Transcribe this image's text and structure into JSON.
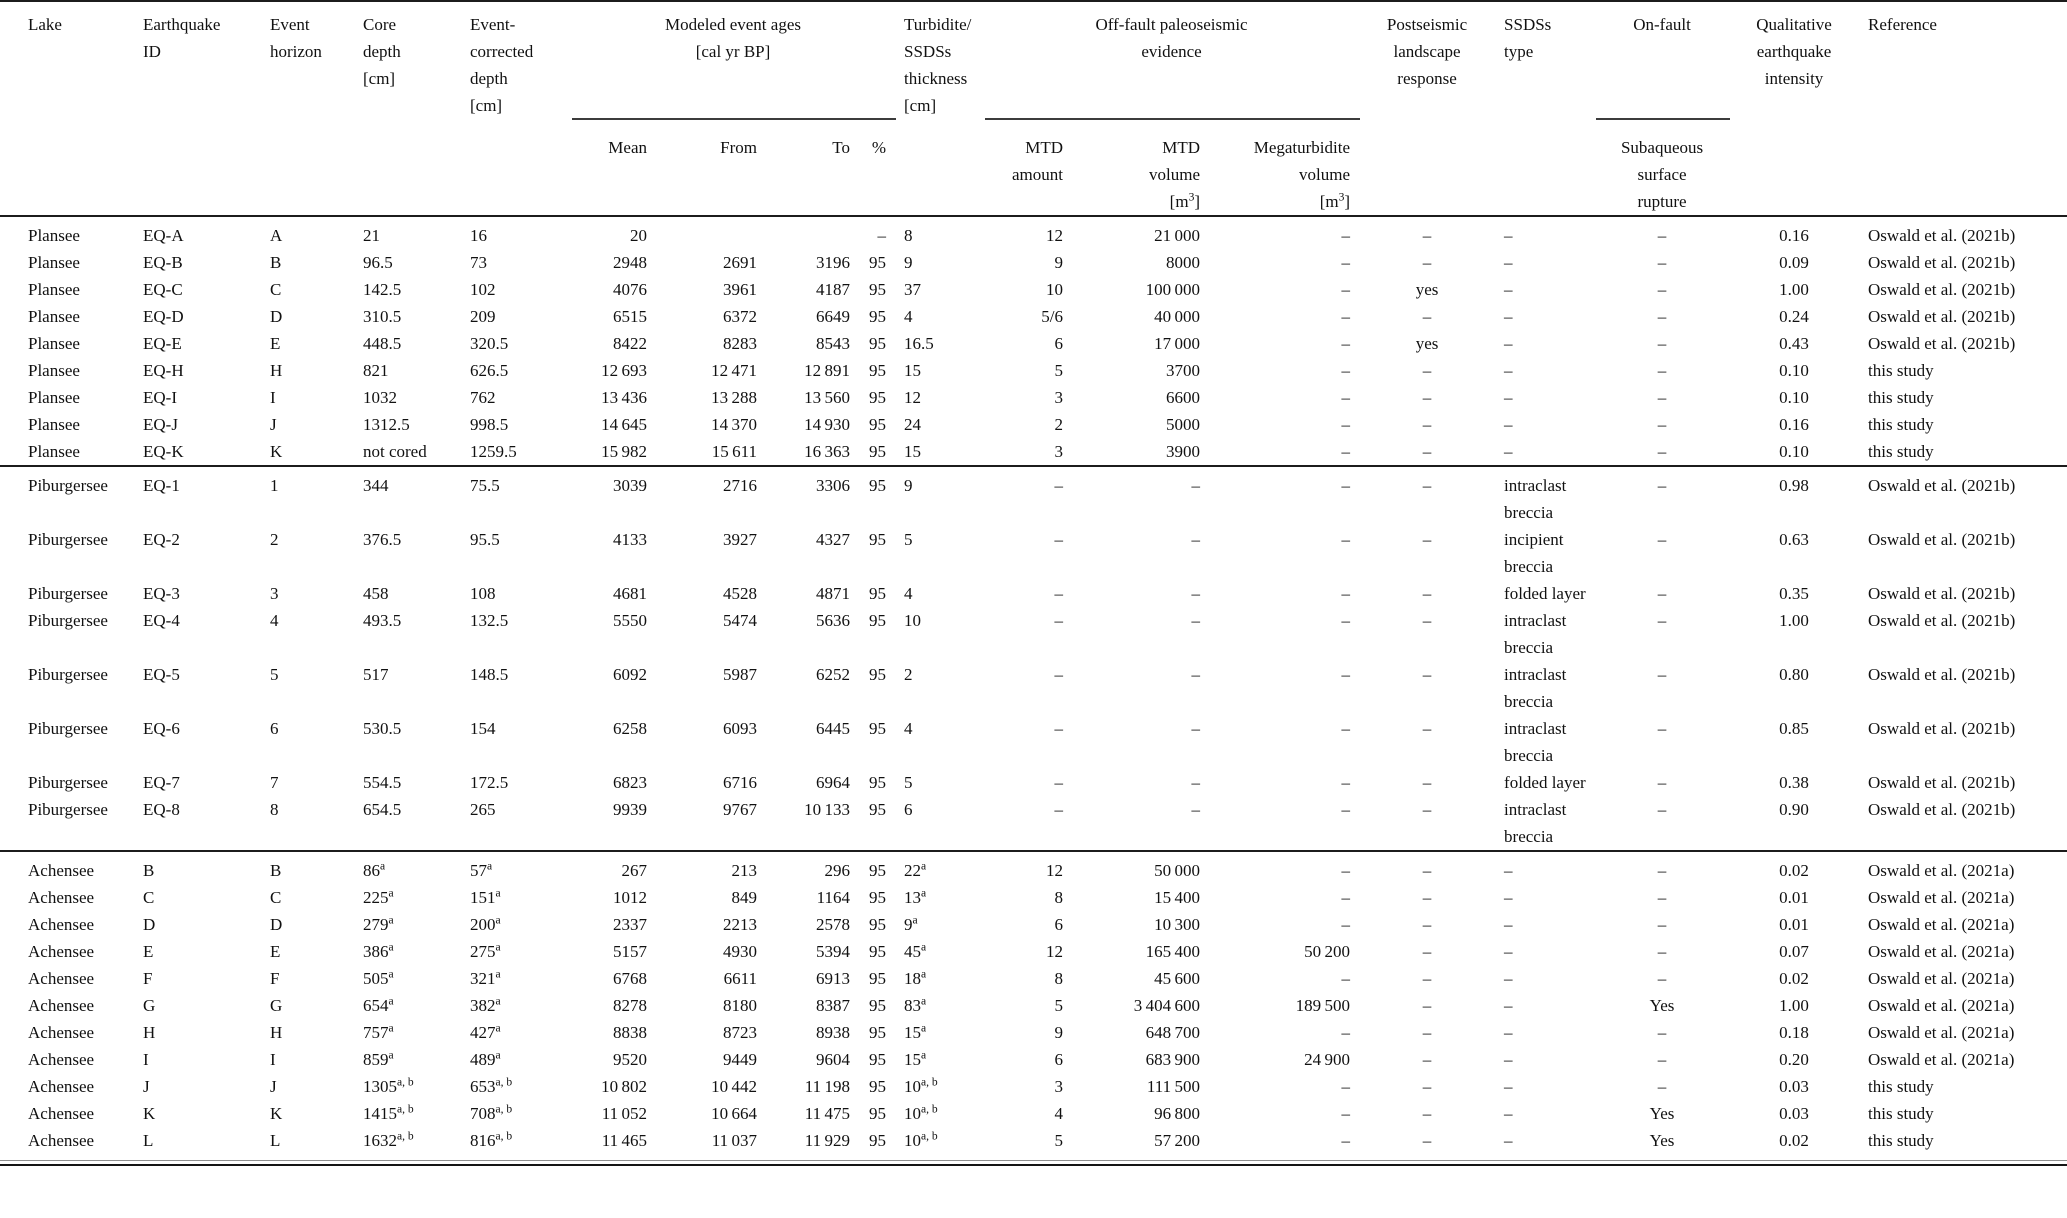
{
  "table": {
    "header": {
      "lake": "Lake",
      "earthquake_id": "Earthquake\nID",
      "event_horizon": "Event\nhorizon",
      "core_depth": "Core\ndepth\n[cm]",
      "event_corrected_depth": "Event-\ncorrected\ndepth\n[cm]",
      "modeled_event_ages": "Modeled event ages\n[cal yr BP]",
      "turbidite_thickness": "Turbidite/\nSSDSs\nthickness\n[cm]",
      "off_fault": "Off-fault paleoseismic\nevidence",
      "postseismic": "Postseismic\nlandscape\nresponse",
      "ssds_type": "SSDSs\ntype",
      "on_fault": "On-fault",
      "qualitative_intensity": "Qualitative\nearthquake\nintensity",
      "reference": "Reference",
      "mean": "Mean",
      "from": "From",
      "to": "To",
      "percent": "%",
      "mtd_amount": "MTD\namount",
      "mtd_volume": "MTD\nvolume\n[m^{3}]",
      "megaturbidite_volume": "Megaturbidite\nvolume\n[m^{3}]",
      "subaqueous": "Subaqueous\nsurface\nrupture"
    },
    "column_ids": [
      "lake",
      "earthquake-id",
      "event-horizon",
      "core-depth",
      "event-corrected-depth",
      "age-mean",
      "age-from",
      "age-to",
      "age-percent",
      "thickness",
      "mtd-amount",
      "mtd-volume",
      "megaturbidite-volume",
      "postseismic-response",
      "ssds-type",
      "subaqueous-rupture",
      "intensity",
      "reference"
    ],
    "sections": [
      {
        "lake": "Plansee",
        "rows": [
          [
            "Plansee",
            "EQ-A",
            "A",
            "21",
            "16",
            "20",
            "",
            "",
            "–",
            "8",
            "12",
            "21 000",
            "–",
            "–",
            "–",
            "–",
            "0.16",
            "Oswald et al. (2021b)"
          ],
          [
            "Plansee",
            "EQ-B",
            "B",
            "96.5",
            "73",
            "2948",
            "2691",
            "3196",
            "95",
            "9",
            "9",
            "8000",
            "–",
            "–",
            "–",
            "–",
            "0.09",
            "Oswald et al. (2021b)"
          ],
          [
            "Plansee",
            "EQ-C",
            "C",
            "142.5",
            "102",
            "4076",
            "3961",
            "4187",
            "95",
            "37",
            "10",
            "100 000",
            "–",
            "yes",
            "–",
            "–",
            "1.00",
            "Oswald et al. (2021b)"
          ],
          [
            "Plansee",
            "EQ-D",
            "D",
            "310.5",
            "209",
            "6515",
            "6372",
            "6649",
            "95",
            "4",
            "5/6",
            "40 000",
            "–",
            "–",
            "–",
            "–",
            "0.24",
            "Oswald et al. (2021b)"
          ],
          [
            "Plansee",
            "EQ-E",
            "E",
            "448.5",
            "320.5",
            "8422",
            "8283",
            "8543",
            "95",
            "16.5",
            "6",
            "17 000",
            "–",
            "yes",
            "–",
            "–",
            "0.43",
            "Oswald et al. (2021b)"
          ],
          [
            "Plansee",
            "EQ-H",
            "H",
            "821",
            "626.5",
            "12 693",
            "12 471",
            "12 891",
            "95",
            "15",
            "5",
            "3700",
            "–",
            "–",
            "–",
            "–",
            "0.10",
            "this study"
          ],
          [
            "Plansee",
            "EQ-I",
            "I",
            "1032",
            "762",
            "13 436",
            "13 288",
            "13 560",
            "95",
            "12",
            "3",
            "6600",
            "–",
            "–",
            "–",
            "–",
            "0.10",
            "this study"
          ],
          [
            "Plansee",
            "EQ-J",
            "J",
            "1312.5",
            "998.5",
            "14 645",
            "14 370",
            "14 930",
            "95",
            "24",
            "2",
            "5000",
            "–",
            "–",
            "–",
            "–",
            "0.16",
            "this study"
          ],
          [
            "Plansee",
            "EQ-K",
            "K",
            "not cored",
            "1259.5",
            "15 982",
            "15 611",
            "16 363",
            "95",
            "15",
            "3",
            "3900",
            "–",
            "–",
            "–",
            "–",
            "0.10",
            "this study"
          ]
        ]
      },
      {
        "lake": "Piburgersee",
        "rows": [
          [
            "Piburgersee",
            "EQ-1",
            "1",
            "344",
            "75.5",
            "3039",
            "2716",
            "3306",
            "95",
            "9",
            "–",
            "–",
            "–",
            "–",
            "intraclast breccia",
            "–",
            "0.98",
            "Oswald et al. (2021b)"
          ],
          [
            "Piburgersee",
            "EQ-2",
            "2",
            "376.5",
            "95.5",
            "4133",
            "3927",
            "4327",
            "95",
            "5",
            "–",
            "–",
            "–",
            "–",
            "incipient breccia",
            "–",
            "0.63",
            "Oswald et al. (2021b)"
          ],
          [
            "Piburgersee",
            "EQ-3",
            "3",
            "458",
            "108",
            "4681",
            "4528",
            "4871",
            "95",
            "4",
            "–",
            "–",
            "–",
            "–",
            "folded layer",
            "–",
            "0.35",
            "Oswald et al. (2021b)"
          ],
          [
            "Piburgersee",
            "EQ-4",
            "4",
            "493.5",
            "132.5",
            "5550",
            "5474",
            "5636",
            "95",
            "10",
            "–",
            "–",
            "–",
            "–",
            "intraclast breccia",
            "–",
            "1.00",
            "Oswald et al. (2021b)"
          ],
          [
            "Piburgersee",
            "EQ-5",
            "5",
            "517",
            "148.5",
            "6092",
            "5987",
            "6252",
            "95",
            "2",
            "–",
            "–",
            "–",
            "–",
            "intraclast breccia",
            "–",
            "0.80",
            "Oswald et al. (2021b)"
          ],
          [
            "Piburgersee",
            "EQ-6",
            "6",
            "530.5",
            "154",
            "6258",
            "6093",
            "6445",
            "95",
            "4",
            "–",
            "–",
            "–",
            "–",
            "intraclast breccia",
            "–",
            "0.85",
            "Oswald et al. (2021b)"
          ],
          [
            "Piburgersee",
            "EQ-7",
            "7",
            "554.5",
            "172.5",
            "6823",
            "6716",
            "6964",
            "95",
            "5",
            "–",
            "–",
            "–",
            "–",
            "folded layer",
            "–",
            "0.38",
            "Oswald et al. (2021b)"
          ],
          [
            "Piburgersee",
            "EQ-8",
            "8",
            "654.5",
            "265",
            "9939",
            "9767",
            "10 133",
            "95",
            "6",
            "–",
            "–",
            "–",
            "–",
            "intraclast breccia",
            "–",
            "0.90",
            "Oswald et al. (2021b)"
          ]
        ]
      },
      {
        "lake": "Achensee",
        "rows": [
          [
            "Achensee",
            "B",
            "B",
            "86^{a}",
            "57^{a}",
            "267",
            "213",
            "296",
            "95",
            "22^{a}",
            "12",
            "50 000",
            "–",
            "–",
            "–",
            "–",
            "0.02",
            "Oswald et al. (2021a)"
          ],
          [
            "Achensee",
            "C",
            "C",
            "225^{a}",
            "151^{a}",
            "1012",
            "849",
            "1164",
            "95",
            "13^{a}",
            "8",
            "15 400",
            "–",
            "–",
            "–",
            "–",
            "0.01",
            "Oswald et al. (2021a)"
          ],
          [
            "Achensee",
            "D",
            "D",
            "279^{a}",
            "200^{a}",
            "2337",
            "2213",
            "2578",
            "95",
            "9^{a}",
            "6",
            "10 300",
            "–",
            "–",
            "–",
            "–",
            "0.01",
            "Oswald et al. (2021a)"
          ],
          [
            "Achensee",
            "E",
            "E",
            "386^{a}",
            "275^{a}",
            "5157",
            "4930",
            "5394",
            "95",
            "45^{a}",
            "12",
            "165 400",
            "50 200",
            "–",
            "–",
            "–",
            "0.07",
            "Oswald et al. (2021a)"
          ],
          [
            "Achensee",
            "F",
            "F",
            "505^{a}",
            "321^{a}",
            "6768",
            "6611",
            "6913",
            "95",
            "18^{a}",
            "8",
            "45 600",
            "–",
            "–",
            "–",
            "–",
            "0.02",
            "Oswald et al. (2021a)"
          ],
          [
            "Achensee",
            "G",
            "G",
            "654^{a}",
            "382^{a}",
            "8278",
            "8180",
            "8387",
            "95",
            "83^{a}",
            "5",
            "3 404 600",
            "189 500",
            "–",
            "–",
            "Yes",
            "1.00",
            "Oswald et al. (2021a)"
          ],
          [
            "Achensee",
            "H",
            "H",
            "757^{a}",
            "427^{a}",
            "8838",
            "8723",
            "8938",
            "95",
            "15^{a}",
            "9",
            "648 700",
            "–",
            "–",
            "–",
            "–",
            "0.18",
            "Oswald et al. (2021a)"
          ],
          [
            "Achensee",
            "I",
            "I",
            "859^{a}",
            "489^{a}",
            "9520",
            "9449",
            "9604",
            "95",
            "15^{a}",
            "6",
            "683 900",
            "24 900",
            "–",
            "–",
            "–",
            "0.20",
            "Oswald et al. (2021a)"
          ],
          [
            "Achensee",
            "J",
            "J",
            "1305^{a, b}",
            "653^{a, b}",
            "10 802",
            "10 442",
            "11 198",
            "95",
            "10^{a, b}",
            "3",
            "111 500",
            "–",
            "–",
            "–",
            "–",
            "0.03",
            "this study"
          ],
          [
            "Achensee",
            "K",
            "K",
            "1415^{a, b}",
            "708^{a, b}",
            "11 052",
            "10 664",
            "11 475",
            "95",
            "10^{a, b}",
            "4",
            "96 800",
            "–",
            "–",
            "–",
            "Yes",
            "0.03",
            "this study"
          ],
          [
            "Achensee",
            "L",
            "L",
            "1632^{a, b}",
            "816^{a, b}",
            "11 465",
            "11 037",
            "11 929",
            "95",
            "10^{a, b}",
            "5",
            "57 200",
            "–",
            "–",
            "–",
            "Yes",
            "0.02",
            "this study"
          ]
        ]
      }
    ]
  }
}
